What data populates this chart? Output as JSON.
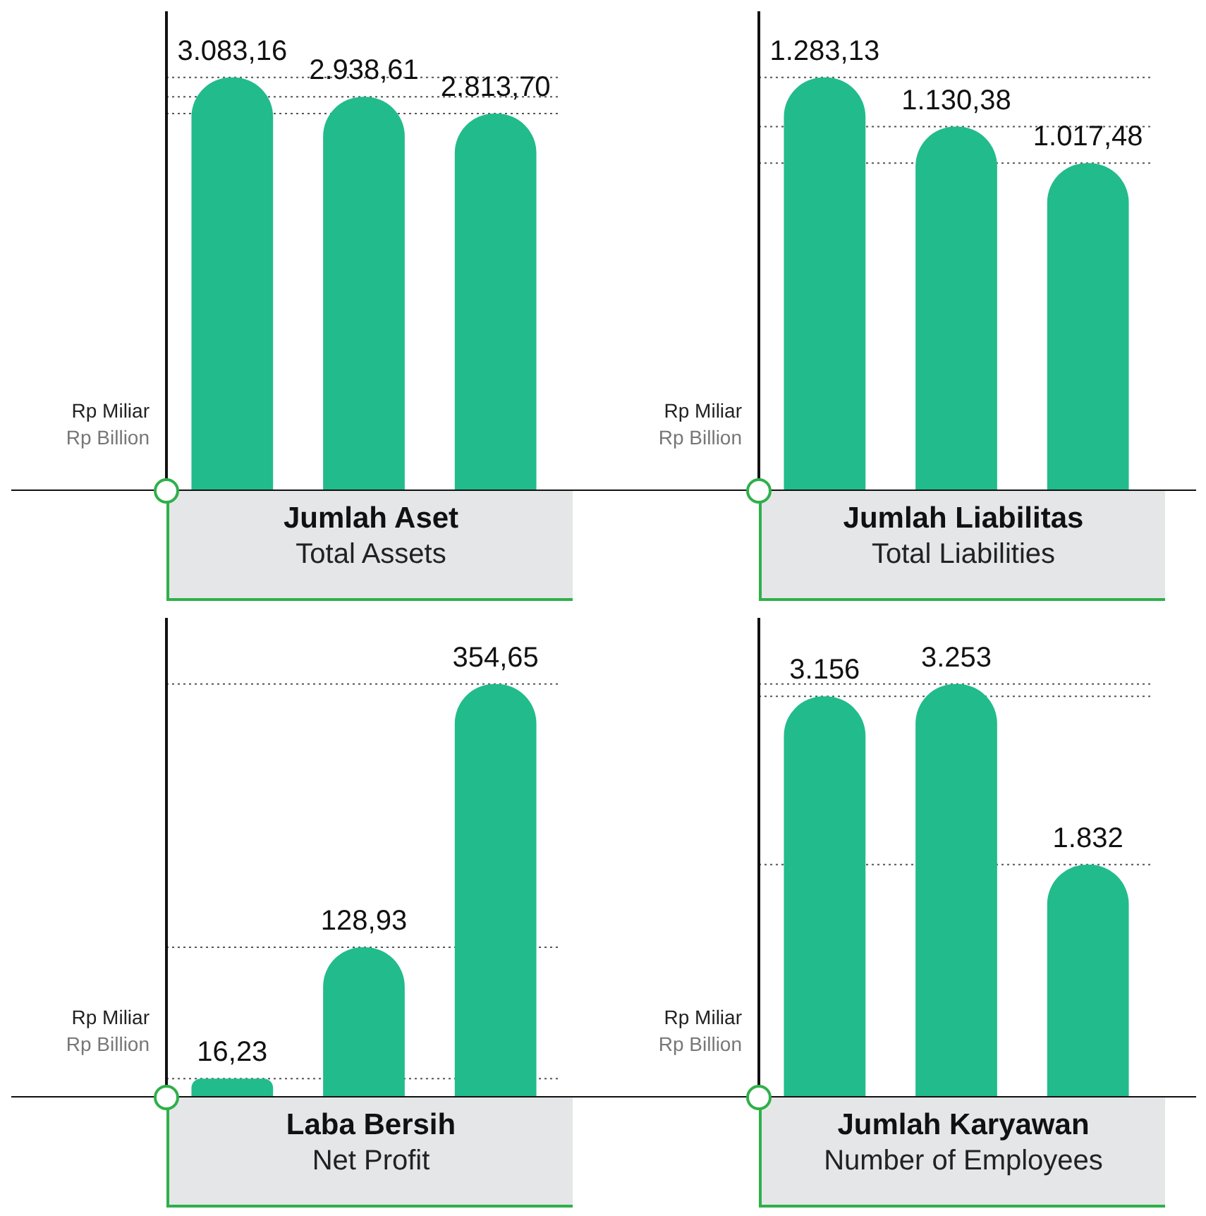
{
  "chart_data": [
    {
      "type": "bar",
      "title": "Jumlah Aset",
      "subtitle": "Total Assets",
      "ylabel": "Rp Miliar\nRp Billion",
      "categories": [
        null,
        null,
        null
      ],
      "values": [
        3083.16,
        2938.61,
        2813.7
      ],
      "value_labels": [
        "3.083,16",
        "2.938,61",
        "2.813,70"
      ],
      "color": "#22bb8c",
      "grid": false,
      "tick_labels": false,
      "ref_lines": [
        {
          "axis": "y",
          "value": 3083.16,
          "line_style": "dotted",
          "color": "#555555"
        },
        {
          "axis": "y",
          "value": 2938.61,
          "line_style": "dotted",
          "color": "#555555"
        },
        {
          "axis": "y",
          "value": 2813.7,
          "line_style": "dotted",
          "color": "#555555"
        }
      ]
    },
    {
      "type": "bar",
      "title": "Jumlah Liabilitas",
      "subtitle": "Total Liabilities",
      "ylabel": "Rp Miliar\nRp Billion",
      "categories": [
        null,
        null,
        null
      ],
      "values": [
        1283.13,
        1130.38,
        1017.48
      ],
      "value_labels": [
        "1.283,13",
        "1.130,38",
        "1.017,48"
      ],
      "color": "#22bb8c",
      "grid": false,
      "tick_labels": false,
      "ref_lines": [
        {
          "axis": "y",
          "value": 1283.13,
          "line_style": "dotted",
          "color": "#555555"
        },
        {
          "axis": "y",
          "value": 1130.38,
          "line_style": "dotted",
          "color": "#555555"
        },
        {
          "axis": "y",
          "value": 1017.48,
          "line_style": "dotted",
          "color": "#555555"
        }
      ]
    },
    {
      "type": "bar",
      "title": "Laba Bersih",
      "subtitle": "Net Profit",
      "ylabel": "Rp Miliar\nRp Billion",
      "categories": [
        null,
        null,
        null
      ],
      "values": [
        16.23,
        128.93,
        354.65
      ],
      "value_labels": [
        "16,23",
        "128,93",
        "354,65"
      ],
      "color": "#22bb8c",
      "grid": false,
      "tick_labels": false,
      "ref_lines": [
        {
          "axis": "y",
          "value": 16.23,
          "line_style": "dotted",
          "color": "#555555"
        },
        {
          "axis": "y",
          "value": 128.93,
          "line_style": "dotted",
          "color": "#555555"
        },
        {
          "axis": "y",
          "value": 354.65,
          "line_style": "dotted",
          "color": "#555555"
        }
      ]
    },
    {
      "type": "bar",
      "title": "Jumlah Karyawan",
      "subtitle": "Number of Employees",
      "ylabel": "Rp Miliar\nRp Billion",
      "categories": [
        null,
        null,
        null
      ],
      "values": [
        3156,
        3253,
        1832
      ],
      "value_labels": [
        "3.156",
        "3.253",
        "1.832"
      ],
      "color": "#22bb8c",
      "grid": false,
      "tick_labels": false,
      "ref_lines": [
        {
          "axis": "y",
          "value": 3156,
          "line_style": "dotted",
          "color": "#555555"
        },
        {
          "axis": "y",
          "value": 3253,
          "line_style": "dotted",
          "color": "#555555"
        },
        {
          "axis": "y",
          "value": 1832,
          "line_style": "dotted",
          "color": "#555555"
        }
      ]
    }
  ]
}
